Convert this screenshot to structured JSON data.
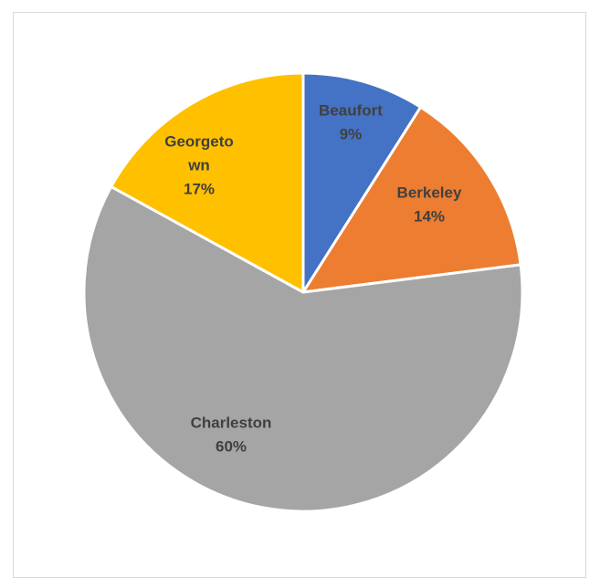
{
  "chart_data": {
    "type": "pie",
    "title": "",
    "slices": [
      {
        "name": "Beaufort",
        "value": 9,
        "label_lines": [
          "Beaufort",
          "9%"
        ],
        "color": "#4472C4"
      },
      {
        "name": "Berkeley",
        "value": 14,
        "label_lines": [
          "Berkeley",
          "14%"
        ],
        "color": "#ED7D31"
      },
      {
        "name": "Charleston",
        "value": 60,
        "label_lines": [
          "Charleston",
          "60%"
        ],
        "color": "#A5A5A5"
      },
      {
        "name": "Georgetown",
        "value": 17,
        "label_lines": [
          "Georgeto",
          "wn",
          "17%"
        ],
        "color": "#FFC000"
      }
    ],
    "start_angle": "12 o'clock",
    "direction": "clockwise",
    "legend": "none"
  }
}
